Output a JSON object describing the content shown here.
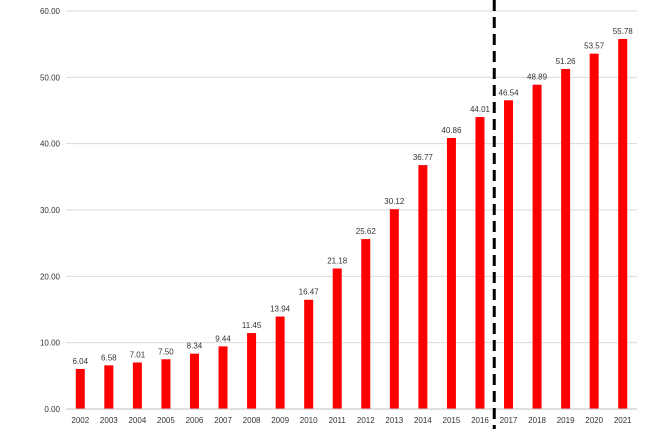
{
  "chart_data": {
    "type": "bar",
    "title": "",
    "xlabel": "",
    "ylabel": "",
    "categories": [
      "2002",
      "2003",
      "2004",
      "2005",
      "2006",
      "2007",
      "2008",
      "2009",
      "2010",
      "2011",
      "2012",
      "2013",
      "2014",
      "2015",
      "2016",
      "2017",
      "2018",
      "2019",
      "2020",
      "2021"
    ],
    "values": [
      6.04,
      6.58,
      7.01,
      7.5,
      8.34,
      9.44,
      11.45,
      13.94,
      16.47,
      21.18,
      25.62,
      30.12,
      36.77,
      40.86,
      44.01,
      46.54,
      48.89,
      51.26,
      53.57,
      55.78
    ],
    "value_labels": [
      "6.04",
      "6.58",
      "7.01",
      "7.50",
      "8.34",
      "9.44",
      "11.45",
      "13.94",
      "16.47",
      "21.18",
      "25.62",
      "30.12",
      "36.77",
      "40.86",
      "44.01",
      "46.54",
      "48.89",
      "51.26",
      "53.57",
      "55.78"
    ],
    "ylim": [
      0,
      60
    ],
    "yticks": [
      0,
      10,
      20,
      30,
      40,
      50,
      60
    ],
    "ytick_labels": [
      "0.00",
      "10.00",
      "20.00",
      "30.00",
      "40.00",
      "50.00",
      "60.00"
    ],
    "grid": true,
    "legend": "none",
    "bar_color": "#ff0000",
    "annotations": [
      {
        "type": "vertical-dashed-line",
        "between": [
          "2016",
          "2017"
        ],
        "color": "#000000"
      }
    ]
  }
}
